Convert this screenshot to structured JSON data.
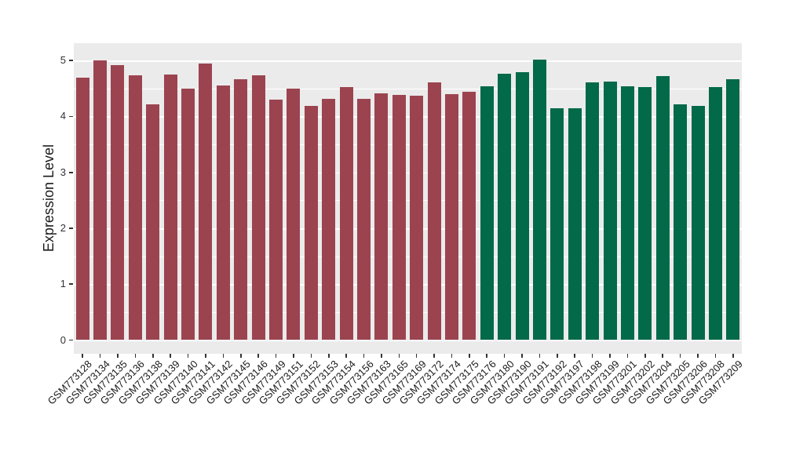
{
  "figure": {
    "background": "#FFFFFF",
    "panel_background": "#EBEBEB",
    "gridline_color": "#FFFFFF",
    "axis_text_color": "#333333",
    "axis_title_color": "#1A1A1A"
  },
  "chart_data": {
    "type": "bar",
    "title": "",
    "xlabel": "",
    "ylabel": "Expression Level",
    "ylim": [
      0,
      5.3
    ],
    "yticks": [
      0,
      1,
      2,
      3,
      4,
      5
    ],
    "y_minor_ticks": [
      0.5,
      1.5,
      2.5,
      3.5,
      4.5
    ],
    "grid": "white major and minor horizontal gridlines on gray panel",
    "legend_position": "none",
    "x_label_rotation_deg": 45,
    "categories": [
      "GSM773128",
      "GSM773134",
      "GSM773135",
      "GSM773136",
      "GSM773138",
      "GSM773139",
      "GSM773140",
      "GSM773141",
      "GSM773142",
      "GSM773145",
      "GSM773146",
      "GSM773149",
      "GSM773151",
      "GSM773152",
      "GSM773153",
      "GSM773154",
      "GSM773156",
      "GSM773163",
      "GSM773165",
      "GSM773169",
      "GSM773172",
      "GSM773174",
      "GSM773175",
      "GSM773176",
      "GSM773180",
      "GSM773190",
      "GSM773191",
      "GSM773192",
      "GSM773197",
      "GSM773198",
      "GSM773199",
      "GSM773201",
      "GSM773202",
      "GSM773204",
      "GSM773205",
      "GSM773206",
      "GSM773208",
      "GSM773209"
    ],
    "values": [
      4.7,
      5.0,
      4.92,
      4.73,
      4.22,
      4.75,
      4.5,
      4.94,
      4.55,
      4.67,
      4.74,
      4.3,
      4.5,
      4.19,
      4.32,
      4.53,
      4.31,
      4.41,
      4.39,
      4.37,
      4.61,
      4.4,
      4.44,
      4.54,
      4.76,
      4.79,
      5.02,
      4.15,
      4.15,
      4.61,
      4.63,
      4.54,
      4.52,
      4.72,
      4.21,
      4.19,
      4.53,
      4.67
    ],
    "groups": [
      "maroon",
      "maroon",
      "maroon",
      "maroon",
      "maroon",
      "maroon",
      "maroon",
      "maroon",
      "maroon",
      "maroon",
      "maroon",
      "maroon",
      "maroon",
      "maroon",
      "maroon",
      "maroon",
      "maroon",
      "maroon",
      "maroon",
      "maroon",
      "maroon",
      "maroon",
      "maroon",
      "green",
      "green",
      "green",
      "green",
      "green",
      "green",
      "green",
      "green",
      "green",
      "green",
      "green",
      "green",
      "green",
      "green",
      "green"
    ],
    "group_colors": {
      "maroon": "#9B4450",
      "green": "#026949"
    }
  }
}
